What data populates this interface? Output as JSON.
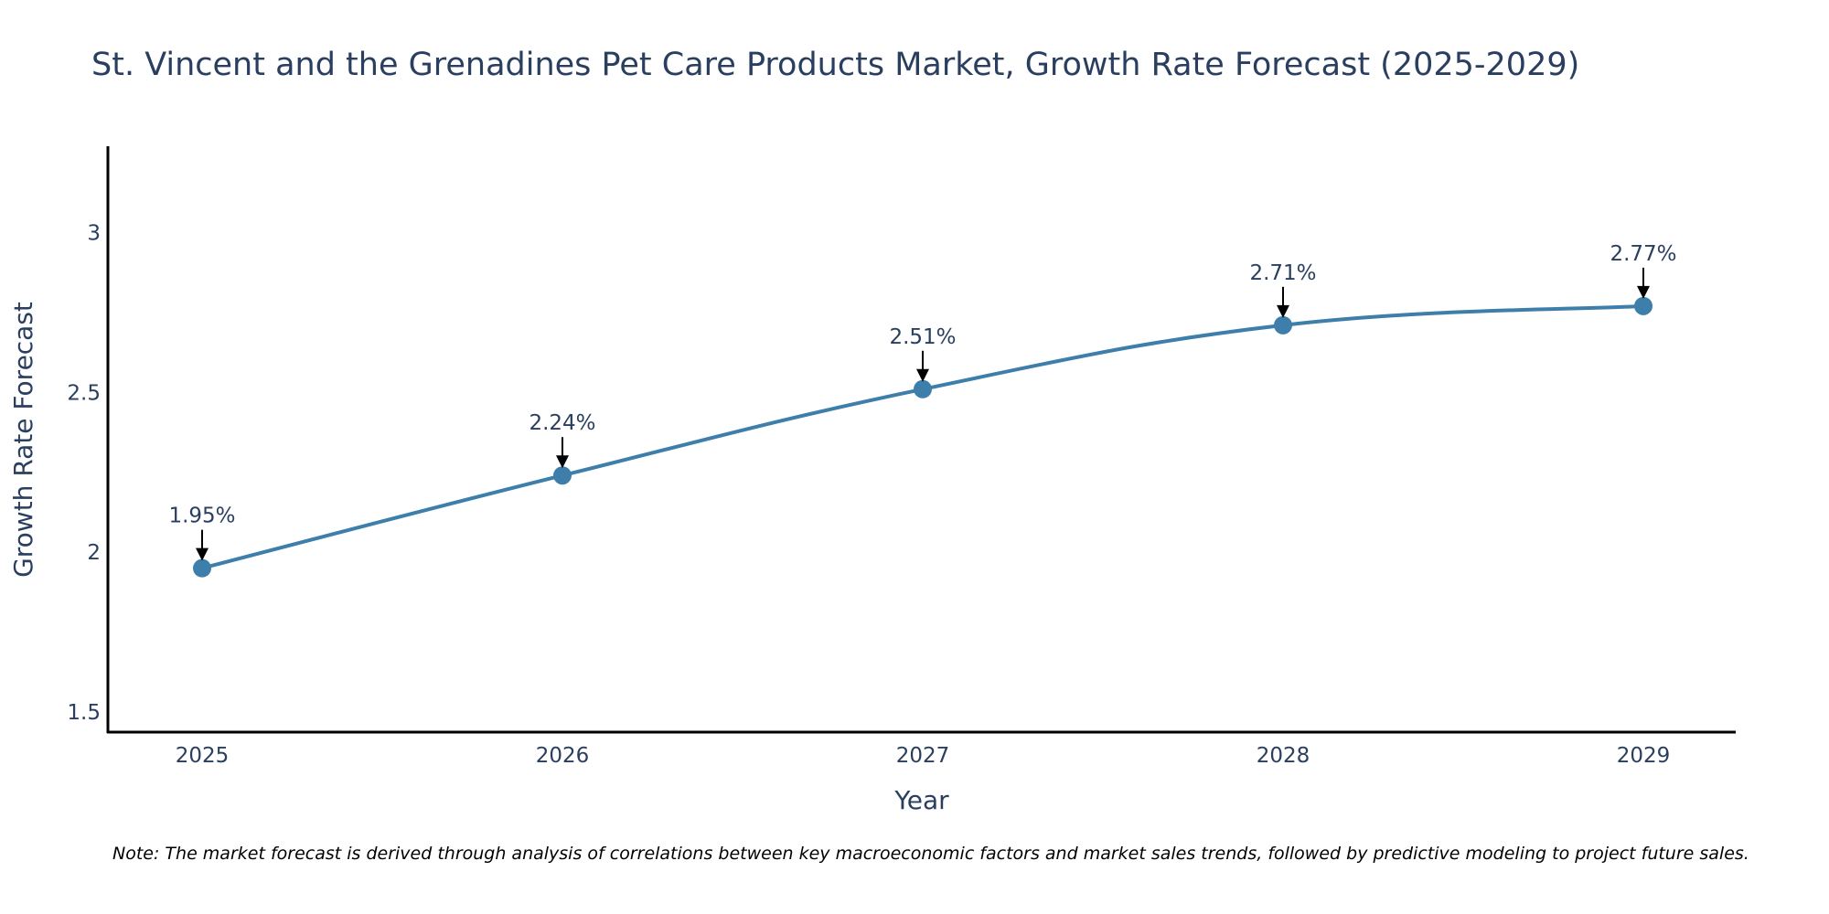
{
  "chart_data": {
    "type": "line",
    "title": "St. Vincent and the Grenadines Pet Care Products Market, Growth Rate Forecast (2025-2029)",
    "xlabel": "Year",
    "ylabel": "Growth Rate Forecast",
    "categories": [
      "2025",
      "2026",
      "2027",
      "2028",
      "2029"
    ],
    "values": [
      1.95,
      2.24,
      2.51,
      2.71,
      2.77
    ],
    "labels": [
      "1.95%",
      "2.24%",
      "2.51%",
      "2.71%",
      "2.77%"
    ],
    "ylim": [
      1.44,
      3.27
    ],
    "yticks": [
      "1.5",
      "2",
      "2.5",
      "3"
    ],
    "grid": false,
    "line_color": "#3d7eaa",
    "marker_color": "#3d7eaa",
    "arrow_color": "#000000"
  },
  "note": "Note: The market forecast is derived through analysis of correlations between key macroeconomic factors and market sales trends, followed by predictive modeling to project future sales."
}
